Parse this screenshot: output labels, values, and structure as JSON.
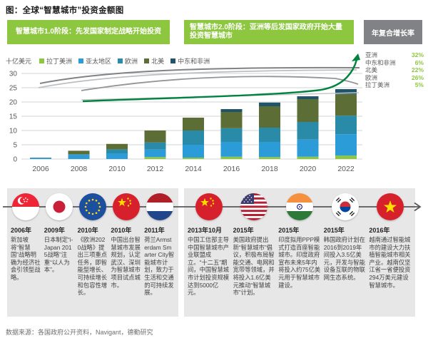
{
  "header": {
    "title": "图：全球“智慧城市”投资金额图"
  },
  "banners": {
    "phase1": "智慧城市1.0阶段：先发国家制定战略开始投资",
    "phase2": "智慧城市2.0阶段：亚洲等后发国家政府开始大量投资智慧城市",
    "cagr_title": "年复合增长率"
  },
  "cagr": [
    {
      "label": "亚洲",
      "value": "32%"
    },
    {
      "label": "中东和非洲",
      "value": "6%"
    },
    {
      "label": "北美",
      "value": "22%"
    },
    {
      "label": "欧洲",
      "value": "26%"
    },
    {
      "label": "拉丁美洲",
      "value": "5%"
    }
  ],
  "chart_data": {
    "type": "bar",
    "stacked": true,
    "unit_label": "十亿美元",
    "categories": [
      "2006",
      "2008",
      "2010",
      "2012",
      "2014",
      "2016",
      "2018",
      "2020",
      "2022"
    ],
    "series": [
      {
        "name": "拉丁美洲",
        "color": "#8dc63f",
        "values": [
          0,
          0,
          0,
          0.7,
          0.5,
          0.8,
          0.7,
          0.8,
          1.2
        ]
      },
      {
        "name": "亚太地区",
        "color": "#2b9cd8",
        "values": [
          0.3,
          1.4,
          2.0,
          2.6,
          4.5,
          5.2,
          5.3,
          6.0,
          7.5
        ]
      },
      {
        "name": "欧洲",
        "color": "#2a8ba8",
        "values": [
          0.2,
          0.3,
          1.4,
          2.5,
          5.0,
          4.8,
          5.0,
          6.2,
          6.5
        ]
      },
      {
        "name": "北美",
        "color": "#5c6d35",
        "values": [
          0,
          1.2,
          1.9,
          4.2,
          4.5,
          5.7,
          7.5,
          8.0,
          7.5
        ]
      },
      {
        "name": "中东和非洲",
        "color": "#20546a",
        "values": [
          0,
          0,
          0,
          0,
          0,
          1.0,
          1.3,
          1.0,
          1.8
        ]
      }
    ],
    "ylim": [
      0,
      30
    ],
    "ytick_step": 5,
    "grid": true,
    "legend_position": "top",
    "accent_green": "#00833e",
    "axis_color": "#58595b",
    "grid_color": "#d1d3d4"
  },
  "timeline": {
    "items": [
      {
        "year": "2006年",
        "flag": "singapore",
        "text": "新加坡将“智慧国”战略明确为经济社会引领型战略。"
      },
      {
        "year": "2009年",
        "flag": "japan",
        "text": "日本制定“i-Japan 2015战略”注重“以人为本”。"
      },
      {
        "year": "2010年",
        "flag": "eu",
        "text": "《欧洲2020战略》提出三项重点任务，即智能型增长、可持续增长和包容性增长。"
      },
      {
        "year": "2010年",
        "flag": "china",
        "text": "中国出台智慧城市发展规划，认定武汉、深圳为智慧城市项目试点城市。"
      },
      {
        "year": "2011年",
        "flag": "netherlands",
        "text": "荷兰Armsterdam Smarter City智能城市计划，致力于生活和交通的可持续发展。"
      },
      {
        "year": "2013年10月",
        "flag": "china",
        "text": "中国工信部主导中国智慧城市产业联盟成立。“十二五”期间，中国智慧城市计划投资规模达到5000亿元。"
      },
      {
        "year": "2015年",
        "flag": "usa",
        "text": "美国政府提出新“智慧城市”倡议，积极布局智能交通、电网和宽带等领域，并将投入1.6亿美元推动“智慧城市”计划。"
      },
      {
        "year": "2015年",
        "flag": "india",
        "text": "印度拟用PPP模式打造百座智能城市。印度政府宣布未来5年内将投入约75亿美元用于智慧城市建设。"
      },
      {
        "year": "2015年",
        "flag": "korea",
        "text": "韩国政府计划在2016到2019年间投入3.5亿美元，开发与智能设备互联的物联网生态系统。"
      },
      {
        "year": "2016年",
        "flag": "vietnam",
        "text": "越南通过智能城市的建设大力扶植智能城市相关产业。越南仅坚江省一省便投资294万美元建设智慧城市。"
      }
    ]
  },
  "source": "数据来源：各国政府公开资料，Navigant，德勤研究"
}
